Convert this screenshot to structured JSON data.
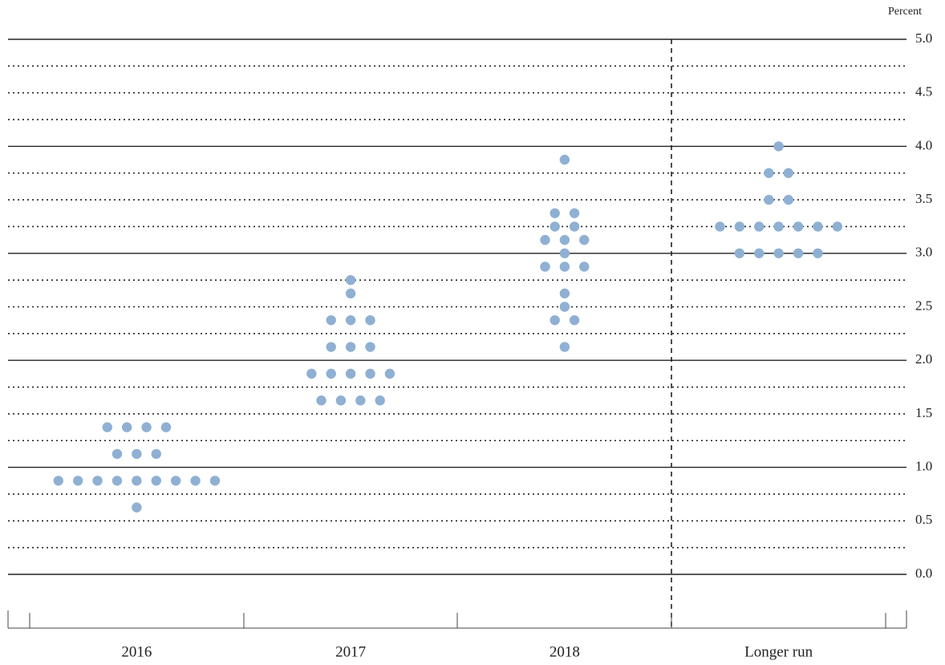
{
  "chart_data": {
    "type": "dot",
    "y_label": "Percent",
    "categories": [
      "2016",
      "2017",
      "2018",
      "Longer run"
    ],
    "values": [
      [
        1.375,
        1.375,
        1.375,
        1.375,
        1.125,
        1.125,
        1.125,
        0.875,
        0.875,
        0.875,
        0.875,
        0.875,
        0.875,
        0.875,
        0.875,
        0.875,
        0.625
      ],
      [
        2.75,
        2.625,
        2.375,
        2.375,
        2.375,
        2.125,
        2.125,
        2.125,
        1.875,
        1.875,
        1.875,
        1.875,
        1.875,
        1.625,
        1.625,
        1.625,
        1.625
      ],
      [
        3.875,
        3.375,
        3.375,
        3.25,
        3.25,
        3.125,
        3.125,
        3.125,
        3.0,
        2.875,
        2.875,
        2.875,
        2.625,
        2.5,
        2.375,
        2.375,
        2.125
      ],
      [
        4.0,
        3.75,
        3.75,
        3.5,
        3.5,
        3.25,
        3.25,
        3.25,
        3.25,
        3.25,
        3.25,
        3.25,
        3.0,
        3.0,
        3.0,
        3.0,
        3.0
      ]
    ],
    "color": "#8fb0d3",
    "ylim": [
      0,
      5
    ],
    "yticks": [
      {
        "value": 0,
        "label": "0.0"
      },
      0.5,
      {
        "value": 1,
        "label": "1.0"
      },
      1.5,
      {
        "value": 2,
        "label": "2.0"
      },
      2.5,
      {
        "value": 3,
        "label": "3.0"
      },
      3.5,
      {
        "value": 4,
        "label": "4.0"
      },
      4.5,
      {
        "value": 5,
        "label": "5.0"
      }
    ],
    "grid": true
  }
}
